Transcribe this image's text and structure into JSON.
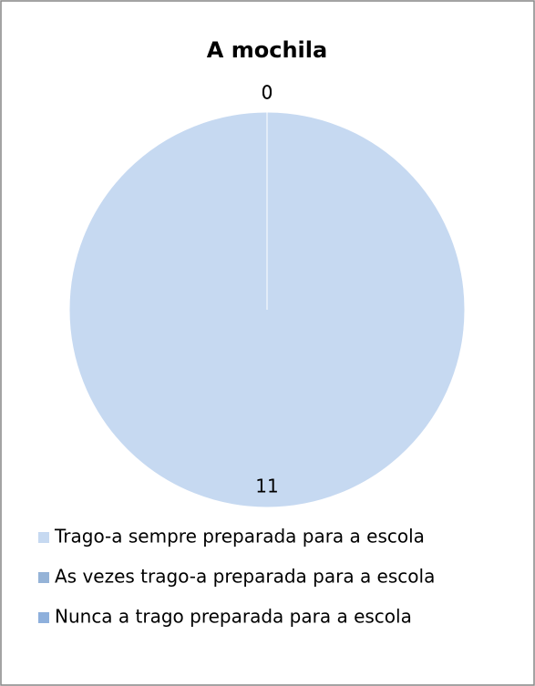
{
  "chart_data": {
    "type": "pie",
    "title": "A mochila",
    "categories": [
      "Trago-a sempre preparada para a escola",
      "As vezes trago-a preparada para a escola",
      "Nunca a trago preparada para a escola"
    ],
    "values": [
      11,
      0,
      0
    ],
    "colors": [
      "#c6d9f1",
      "#95b3d7",
      "#8eb0dc"
    ],
    "legend": "bottom"
  }
}
